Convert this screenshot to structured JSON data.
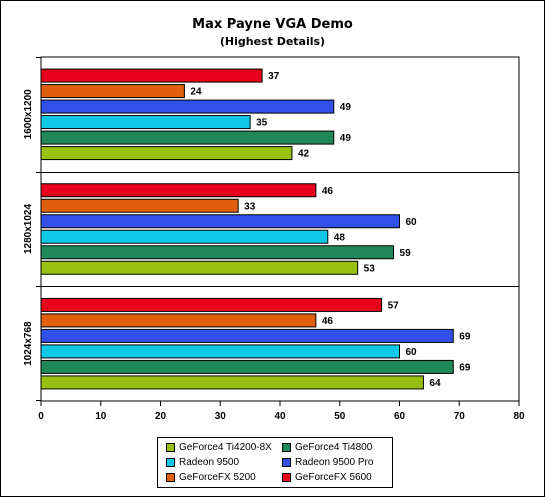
{
  "chart_data": {
    "type": "bar",
    "orientation": "horizontal",
    "title": "Max Payne VGA Demo",
    "subtitle": "(Highest Details)",
    "categories": [
      "1600x1200",
      "1280x1024",
      "1024x768"
    ],
    "series": [
      {
        "name": "GeForceFX 5600",
        "color": "#e8001c",
        "values": [
          37,
          46,
          57
        ]
      },
      {
        "name": "GeForceFX 5200",
        "color": "#e06010",
        "values": [
          24,
          33,
          46
        ]
      },
      {
        "name": "Radeon 9500 Pro",
        "color": "#3050e8",
        "values": [
          49,
          60,
          69
        ]
      },
      {
        "name": "Radeon 9500",
        "color": "#10c8e8",
        "values": [
          35,
          48,
          60
        ]
      },
      {
        "name": "GeForce4 Ti4800",
        "color": "#208858",
        "values": [
          49,
          59,
          69
        ]
      },
      {
        "name": "GeForce4 Ti4200-8X",
        "color": "#98c010",
        "values": [
          42,
          53,
          64
        ]
      }
    ],
    "xlim": [
      0,
      80
    ],
    "xticks": [
      0,
      10,
      20,
      30,
      40,
      50,
      60,
      70,
      80
    ],
    "grid": false,
    "legend_position": "bottom",
    "legend_order": [
      "GeForce4 Ti4200-8X",
      "GeForce4 Ti4800",
      "Radeon 9500",
      "Radeon 9500 Pro",
      "GeForceFX 5200",
      "GeForceFX 5600"
    ]
  }
}
